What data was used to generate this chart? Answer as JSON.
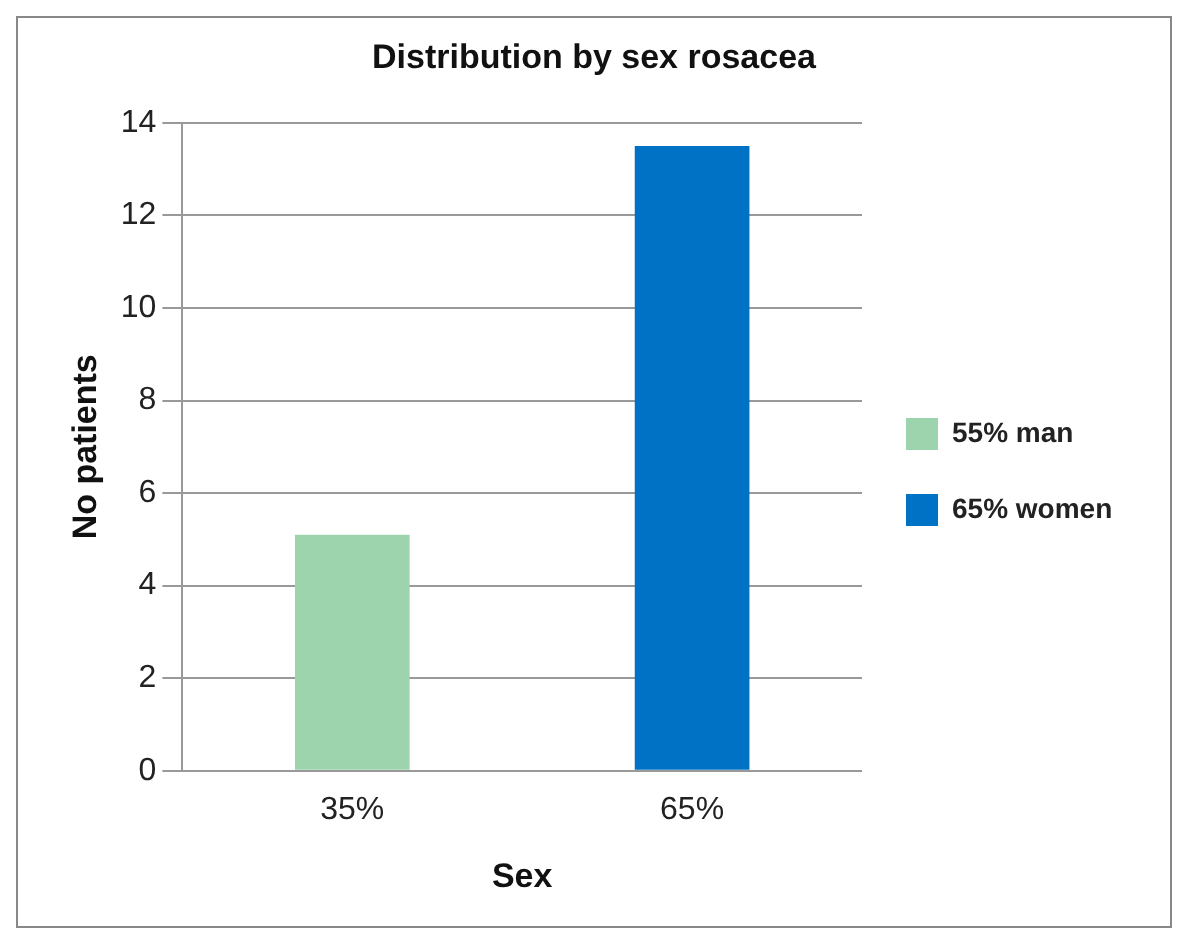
{
  "chart_data": {
    "type": "bar",
    "title": "Distribution by sex rosacea",
    "xlabel": "Sex",
    "ylabel": "No patients",
    "categories": [
      "35%",
      "65%"
    ],
    "series": [
      {
        "name": "55% man",
        "color": "#9dd4ae",
        "values": [
          5.1,
          null
        ]
      },
      {
        "name": "65% women",
        "color": "#0072c6",
        "values": [
          null,
          13.5
        ]
      }
    ],
    "ylim": [
      0,
      14
    ],
    "yticks": [
      0,
      2,
      4,
      6,
      8,
      10,
      12,
      14
    ],
    "grid": "y",
    "legend": "right"
  }
}
